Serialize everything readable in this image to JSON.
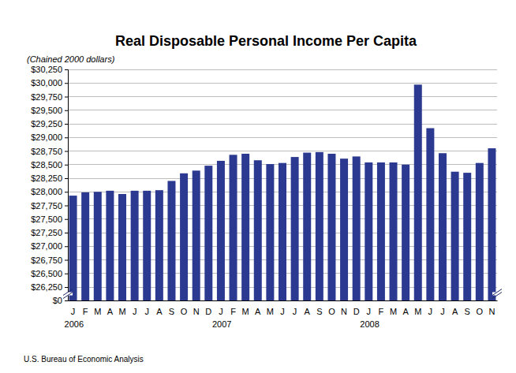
{
  "chart_data": {
    "type": "bar",
    "title": "Real Disposable Personal Income Per Capita",
    "subtitle": "(Chained 2000 dollars)",
    "source": "U.S. Bureau of Economic Analysis",
    "categories": [
      "J",
      "F",
      "M",
      "A",
      "M",
      "J",
      "J",
      "A",
      "S",
      "O",
      "N",
      "D",
      "J",
      "F",
      "M",
      "A",
      "M",
      "J",
      "J",
      "A",
      "S",
      "O",
      "N",
      "D",
      "J",
      "F",
      "M",
      "A",
      "M",
      "J",
      "J",
      "A",
      "S",
      "O",
      "N"
    ],
    "year_labels": [
      {
        "text": "2006",
        "at": 0
      },
      {
        "text": "2007",
        "at": 12
      },
      {
        "text": "2008",
        "at": 24
      }
    ],
    "values": [
      27930,
      27990,
      28000,
      28020,
      27960,
      28020,
      28020,
      28030,
      28200,
      28340,
      28390,
      28480,
      28570,
      28680,
      28700,
      28580,
      28510,
      28530,
      28640,
      28720,
      28730,
      28700,
      28610,
      28650,
      28540,
      28540,
      28540,
      28500,
      29970,
      29170,
      28710,
      28370,
      28350,
      28530,
      28800
    ],
    "color": "#2b3990",
    "ylim": [
      0,
      30250
    ],
    "yticks": [
      {
        "value": 0,
        "label": "$0"
      },
      {
        "value": 26250,
        "label": "$26,250"
      },
      {
        "value": 26500,
        "label": "$26,500"
      },
      {
        "value": 26750,
        "label": "$26,750"
      },
      {
        "value": 27000,
        "label": "$27,000"
      },
      {
        "value": 27250,
        "label": "$27,250"
      },
      {
        "value": 27500,
        "label": "$27,500"
      },
      {
        "value": 27750,
        "label": "$27,750"
      },
      {
        "value": 28000,
        "label": "$28,000"
      },
      {
        "value": 28250,
        "label": "$28,250"
      },
      {
        "value": 28500,
        "label": "$28,500"
      },
      {
        "value": 28750,
        "label": "$28,750"
      },
      {
        "value": 29000,
        "label": "$29,000"
      },
      {
        "value": 29250,
        "label": "$29,250"
      },
      {
        "value": 29500,
        "label": "$29,500"
      },
      {
        "value": 29750,
        "label": "$29,750"
      },
      {
        "value": 30000,
        "label": "$30,000"
      },
      {
        "value": 30250,
        "label": "$30,250"
      }
    ],
    "grid": true
  }
}
